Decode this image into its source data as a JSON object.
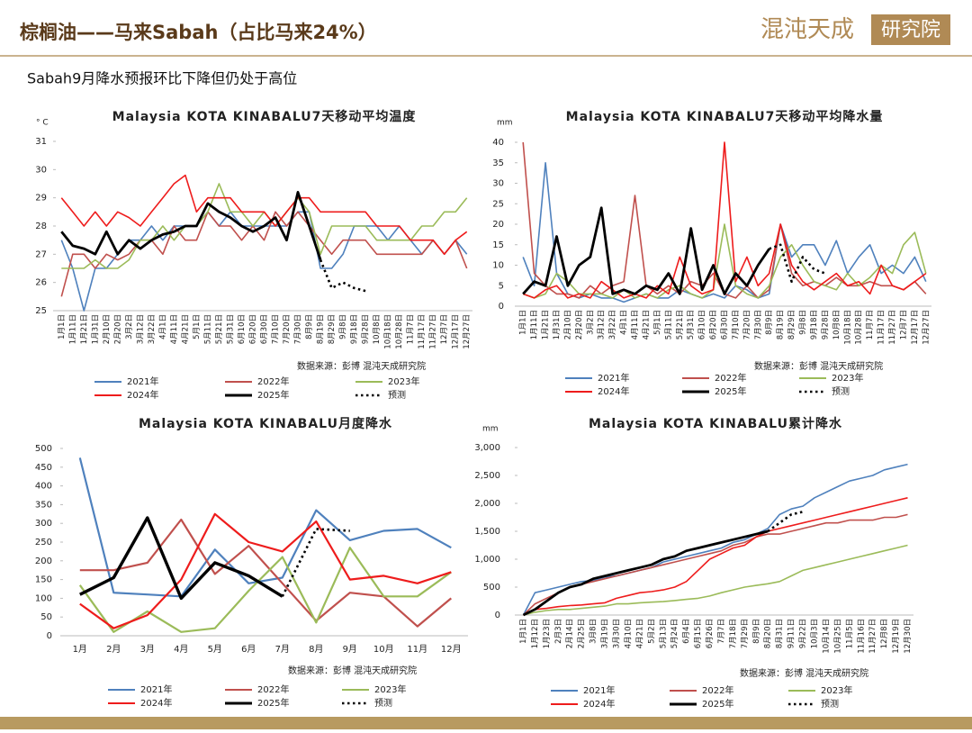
{
  "header": {
    "title": "棕榈油——马来Sabah（占比马来24%）",
    "logo_name": "混沌天成",
    "logo_suffix": "研究院",
    "subtitle": "Sabah9月降水预报环比下降但仍处于高位"
  },
  "chart_data": [
    {
      "type": "line",
      "title": "Malaysia KOTA KINABALU7天移动平均温度",
      "y_unit": "° C",
      "source": "数据来源：彭博  混沌天成研究院",
      "categories": [
        "1月1日",
        "1月11日",
        "1月21日",
        "1月31日",
        "2月10日",
        "2月20日",
        "3月2日",
        "3月12日",
        "3月22日",
        "4月1日",
        "4月11日",
        "4月21日",
        "5月1日",
        "5月11日",
        "5月21日",
        "5月31日",
        "6月10日",
        "6月20日",
        "6月30日",
        "7月10日",
        "7月20日",
        "7月30日",
        "8月9日",
        "8月19日",
        "8月29日",
        "9月8日",
        "9月18日",
        "9月28日",
        "10月8日",
        "10月18日",
        "10月28日",
        "11月7日",
        "11月17日",
        "11月27日",
        "12月7日",
        "12月17日",
        "12月27日"
      ],
      "ylim": [
        25,
        31
      ],
      "yticks": [
        25,
        26,
        27,
        28,
        29,
        30,
        31
      ],
      "series": [
        {
          "name": "2021年",
          "color": "#4f81bd",
          "values": [
            27.5,
            26.5,
            25.0,
            26.5,
            26.5,
            27.0,
            27.5,
            27.5,
            28.0,
            27.5,
            28.0,
            28.0,
            28.0,
            28.5,
            28.0,
            28.5,
            28.0,
            28.0,
            28.0,
            28.0,
            28.0,
            28.5,
            28.5,
            26.5,
            26.5,
            27.0,
            28.0,
            28.0,
            28.0,
            27.5,
            28.0,
            27.5,
            27.0,
            27.5,
            27.0,
            27.5,
            27.0
          ]
        },
        {
          "name": "2022年",
          "color": "#c0504d",
          "values": [
            25.5,
            27.0,
            27.0,
            26.5,
            27.0,
            26.8,
            27.0,
            27.5,
            27.5,
            27.0,
            28.0,
            27.5,
            27.5,
            28.5,
            28.0,
            28.0,
            27.5,
            28.0,
            27.5,
            28.5,
            28.0,
            28.5,
            28.0,
            27.5,
            27.0,
            27.5,
            27.5,
            27.5,
            27.0,
            27.0,
            27.0,
            27.0,
            27.0,
            27.5,
            27.0,
            27.5,
            26.5
          ]
        },
        {
          "name": "2023年",
          "color": "#9bbb59",
          "values": [
            26.5,
            26.5,
            26.5,
            26.8,
            26.5,
            26.5,
            26.8,
            27.5,
            27.5,
            28.0,
            27.5,
            28.0,
            28.0,
            28.5,
            29.5,
            28.5,
            28.5,
            28.0,
            28.5,
            28.0,
            28.5,
            29.0,
            28.5,
            27.0,
            28.0,
            28.0,
            28.0,
            28.0,
            27.5,
            27.5,
            27.5,
            27.5,
            28.0,
            28.0,
            28.5,
            28.5,
            29.0
          ]
        },
        {
          "name": "2024年",
          "color": "#ee1c1c",
          "values": [
            29.0,
            28.5,
            28.0,
            28.5,
            28.0,
            28.5,
            28.3,
            28.0,
            28.5,
            29.0,
            29.5,
            29.8,
            28.5,
            29.0,
            29.0,
            29.0,
            28.5,
            28.5,
            28.5,
            28.0,
            28.5,
            29.0,
            29.0,
            28.5,
            28.5,
            28.5,
            28.5,
            28.5,
            28.0,
            28.0,
            28.0,
            27.5,
            27.5,
            27.5,
            27.0,
            27.5,
            27.8
          ]
        },
        {
          "name": "2025年",
          "color": "#000000",
          "values": [
            27.8,
            27.3,
            27.2,
            27.0,
            27.8,
            27.0,
            27.5,
            27.2,
            27.5,
            27.7,
            27.8,
            28.0,
            28.0,
            28.8,
            28.5,
            28.3,
            28.0,
            27.8,
            28.0,
            28.3,
            27.5,
            29.2,
            28.0,
            26.8,
            null,
            null,
            null,
            null,
            null,
            null,
            null,
            null,
            null,
            null,
            null,
            null,
            null
          ]
        },
        {
          "name": "预测",
          "color": "#000000",
          "dashed": true,
          "values": [
            null,
            null,
            null,
            null,
            null,
            null,
            null,
            null,
            null,
            null,
            null,
            null,
            null,
            null,
            null,
            null,
            null,
            null,
            null,
            null,
            null,
            null,
            null,
            26.8,
            25.8,
            26.0,
            25.8,
            25.7,
            null,
            null,
            null,
            null,
            null,
            null,
            null,
            null,
            null
          ]
        }
      ]
    },
    {
      "type": "line",
      "title": "Malaysia KOTA KINABALU7天移动平均降水量",
      "y_unit": "mm",
      "source": "数据来源：彭博  混沌天成研究院",
      "categories": [
        "1月1日",
        "1月11日",
        "1月21日",
        "1月31日",
        "2月10日",
        "2月20日",
        "3月2日",
        "3月12日",
        "3月22日",
        "4月1日",
        "4月11日",
        "4月21日",
        "5月1日",
        "5月11日",
        "5月21日",
        "5月31日",
        "6月10日",
        "6月20日",
        "6月30日",
        "7月10日",
        "7月20日",
        "7月30日",
        "8月9日",
        "8月19日",
        "8月29日",
        "9月8日",
        "9月18日",
        "9月28日",
        "10月8日",
        "10月18日",
        "10月28日",
        "11月7日",
        "11月17日",
        "11月27日",
        "12月7日",
        "12月17日",
        "12月27日"
      ],
      "ylim": [
        0,
        40
      ],
      "yticks": [
        0,
        5,
        10,
        15,
        20,
        25,
        30,
        35,
        40
      ],
      "series": [
        {
          "name": "2021年",
          "color": "#4f81bd",
          "values": [
            12,
            5,
            35,
            8,
            3,
            2,
            3,
            2,
            2,
            1,
            2,
            3,
            2,
            2,
            4,
            3,
            2,
            3,
            2,
            5,
            4,
            2,
            3,
            20,
            12,
            15,
            15,
            10,
            16,
            8,
            12,
            15,
            8,
            10,
            8,
            12,
            6
          ]
        },
        {
          "name": "2022年",
          "color": "#c0504d",
          "values": [
            40,
            8,
            5,
            3,
            3,
            2,
            5,
            3,
            5,
            6,
            27,
            5,
            3,
            5,
            3,
            6,
            5,
            8,
            3,
            2,
            5,
            2,
            4,
            20,
            8,
            5,
            6,
            5,
            7,
            5,
            5,
            6,
            5,
            5,
            4,
            6,
            3
          ]
        },
        {
          "name": "2023年",
          "color": "#9bbb59",
          "values": [
            3,
            2,
            3,
            8,
            6,
            3,
            3,
            3,
            2,
            4,
            2,
            3,
            2,
            4,
            5,
            3,
            2,
            4,
            20,
            5,
            3,
            2,
            5,
            12,
            15,
            10,
            6,
            5,
            4,
            8,
            5,
            7,
            10,
            8,
            15,
            18,
            8
          ]
        },
        {
          "name": "2024年",
          "color": "#ee1c1c",
          "values": [
            3,
            2,
            4,
            5,
            2,
            3,
            2,
            6,
            4,
            2,
            3,
            2,
            5,
            3,
            12,
            5,
            3,
            4,
            40,
            6,
            12,
            5,
            8,
            20,
            10,
            6,
            4,
            6,
            8,
            5,
            6,
            3,
            10,
            5,
            4,
            6,
            8
          ]
        },
        {
          "name": "2025年",
          "color": "#000000",
          "values": [
            3,
            6,
            5,
            17,
            5,
            10,
            12,
            24,
            3,
            4,
            3,
            5,
            4,
            8,
            3,
            19,
            4,
            10,
            3,
            8,
            5,
            10,
            14,
            null,
            null,
            null,
            null,
            null,
            null,
            null,
            null,
            null,
            null,
            null,
            null,
            null,
            null
          ]
        },
        {
          "name": "预测",
          "color": "#000000",
          "dashed": true,
          "values": [
            null,
            null,
            null,
            null,
            null,
            null,
            null,
            null,
            null,
            null,
            null,
            null,
            null,
            null,
            null,
            null,
            null,
            null,
            null,
            null,
            null,
            null,
            14,
            15,
            6,
            12,
            9,
            8,
            null,
            null,
            null,
            null,
            null,
            null,
            null,
            null,
            null
          ]
        }
      ]
    },
    {
      "type": "line",
      "title": "Malaysia KOTA KINABALU月度降水",
      "source": "数据来源：彭博  混沌天成研究院",
      "categories": [
        "1月",
        "2月",
        "3月",
        "4月",
        "5月",
        "6月",
        "7月",
        "8月",
        "9月",
        "10月",
        "11月",
        "12月"
      ],
      "ylim": [
        0,
        500
      ],
      "yticks": [
        0,
        50,
        100,
        150,
        200,
        250,
        300,
        350,
        400,
        450,
        500
      ],
      "series": [
        {
          "name": "2021年",
          "color": "#4f81bd",
          "values": [
            475,
            115,
            110,
            105,
            230,
            140,
            155,
            335,
            255,
            280,
            285,
            235
          ]
        },
        {
          "name": "2022年",
          "color": "#c0504d",
          "values": [
            175,
            175,
            195,
            310,
            165,
            240,
            140,
            40,
            115,
            105,
            25,
            100
          ]
        },
        {
          "name": "2023年",
          "color": "#9bbb59",
          "values": [
            135,
            10,
            65,
            10,
            20,
            120,
            210,
            35,
            235,
            105,
            105,
            170
          ]
        },
        {
          "name": "2024年",
          "color": "#ee1c1c",
          "values": [
            85,
            20,
            55,
            150,
            325,
            250,
            225,
            305,
            150,
            160,
            140,
            170
          ]
        },
        {
          "name": "2025年",
          "color": "#000000",
          "values": [
            110,
            155,
            315,
            100,
            195,
            160,
            105,
            null,
            null,
            null,
            null,
            null
          ]
        },
        {
          "name": "预测",
          "color": "#000000",
          "dashed": true,
          "values": [
            null,
            null,
            null,
            null,
            null,
            null,
            105,
            285,
            280,
            null,
            null,
            null
          ]
        }
      ]
    },
    {
      "type": "line",
      "title": "Malaysia KOTA KINABALU累计降水",
      "y_unit": "mm",
      "source": "数据来源：彭博  混沌天成研究院",
      "categories": [
        "1月1日",
        "1月12日",
        "1月23日",
        "2月3日",
        "2月14日",
        "2月25日",
        "3月8日",
        "3月19日",
        "3月30日",
        "4月10日",
        "4月21日",
        "5月2日",
        "5月13日",
        "5月24日",
        "6月4日",
        "6月15日",
        "6月26日",
        "7月7日",
        "7月18日",
        "7月29日",
        "8月9日",
        "8月20日",
        "8月31日",
        "9月11日",
        "9月22日",
        "10月3日",
        "10月14日",
        "10月25日",
        "11月5日",
        "11月16日",
        "11月27日",
        "12月8日",
        "12月19日",
        "12月30日"
      ],
      "ylim": [
        0,
        3000
      ],
      "yticks": [
        0,
        500,
        {
          "value": 1000,
          "label": "1,000"
        },
        {
          "value": 1500,
          "label": "1,500"
        },
        {
          "value": 2000,
          "label": "2,000"
        },
        {
          "value": 2500,
          "label": "2,500"
        },
        {
          "value": 3000,
          "label": "3,000"
        }
      ],
      "series": [
        {
          "name": "2021年",
          "color": "#4f81bd",
          "values": [
            0,
            400,
            450,
            500,
            550,
            600,
            620,
            680,
            700,
            750,
            800,
            850,
            950,
            1000,
            1050,
            1100,
            1150,
            1200,
            1300,
            1350,
            1450,
            1550,
            1800,
            1900,
            1950,
            2100,
            2200,
            2300,
            2400,
            2450,
            2500,
            2600,
            2650,
            2700
          ]
        },
        {
          "name": "2022年",
          "color": "#c0504d",
          "values": [
            0,
            200,
            300,
            400,
            500,
            550,
            600,
            650,
            700,
            750,
            800,
            850,
            900,
            950,
            1000,
            1050,
            1100,
            1150,
            1250,
            1300,
            1400,
            1450,
            1450,
            1500,
            1550,
            1600,
            1650,
            1650,
            1700,
            1700,
            1700,
            1750,
            1750,
            1800
          ]
        },
        {
          "name": "2023年",
          "color": "#9bbb59",
          "values": [
            0,
            50,
            80,
            100,
            100,
            120,
            140,
            160,
            200,
            200,
            220,
            230,
            240,
            260,
            280,
            300,
            340,
            400,
            450,
            500,
            530,
            560,
            600,
            700,
            800,
            850,
            900,
            950,
            1000,
            1050,
            1100,
            1150,
            1200,
            1250
          ]
        },
        {
          "name": "2024年",
          "color": "#ee1c1c",
          "values": [
            0,
            100,
            120,
            150,
            170,
            180,
            200,
            220,
            300,
            350,
            400,
            420,
            450,
            500,
            600,
            800,
            1000,
            1100,
            1200,
            1250,
            1400,
            1500,
            1550,
            1600,
            1650,
            1700,
            1750,
            1800,
            1850,
            1900,
            1950,
            2000,
            2050,
            2100
          ]
        },
        {
          "name": "2025年",
          "color": "#000000",
          "values": [
            0,
            100,
            250,
            400,
            500,
            550,
            650,
            700,
            750,
            800,
            850,
            900,
            1000,
            1050,
            1150,
            1200,
            1250,
            1300,
            1350,
            1400,
            1450,
            1500,
            null,
            null,
            null,
            null,
            null,
            null,
            null,
            null,
            null,
            null,
            null,
            null
          ]
        },
        {
          "name": "预测",
          "color": "#000000",
          "dashed": true,
          "values": [
            null,
            null,
            null,
            null,
            null,
            null,
            null,
            null,
            null,
            null,
            null,
            null,
            null,
            null,
            null,
            null,
            null,
            null,
            null,
            null,
            null,
            1500,
            1650,
            1800,
            1850,
            null,
            null,
            null,
            null,
            null,
            null,
            null,
            null,
            null
          ]
        }
      ]
    }
  ]
}
